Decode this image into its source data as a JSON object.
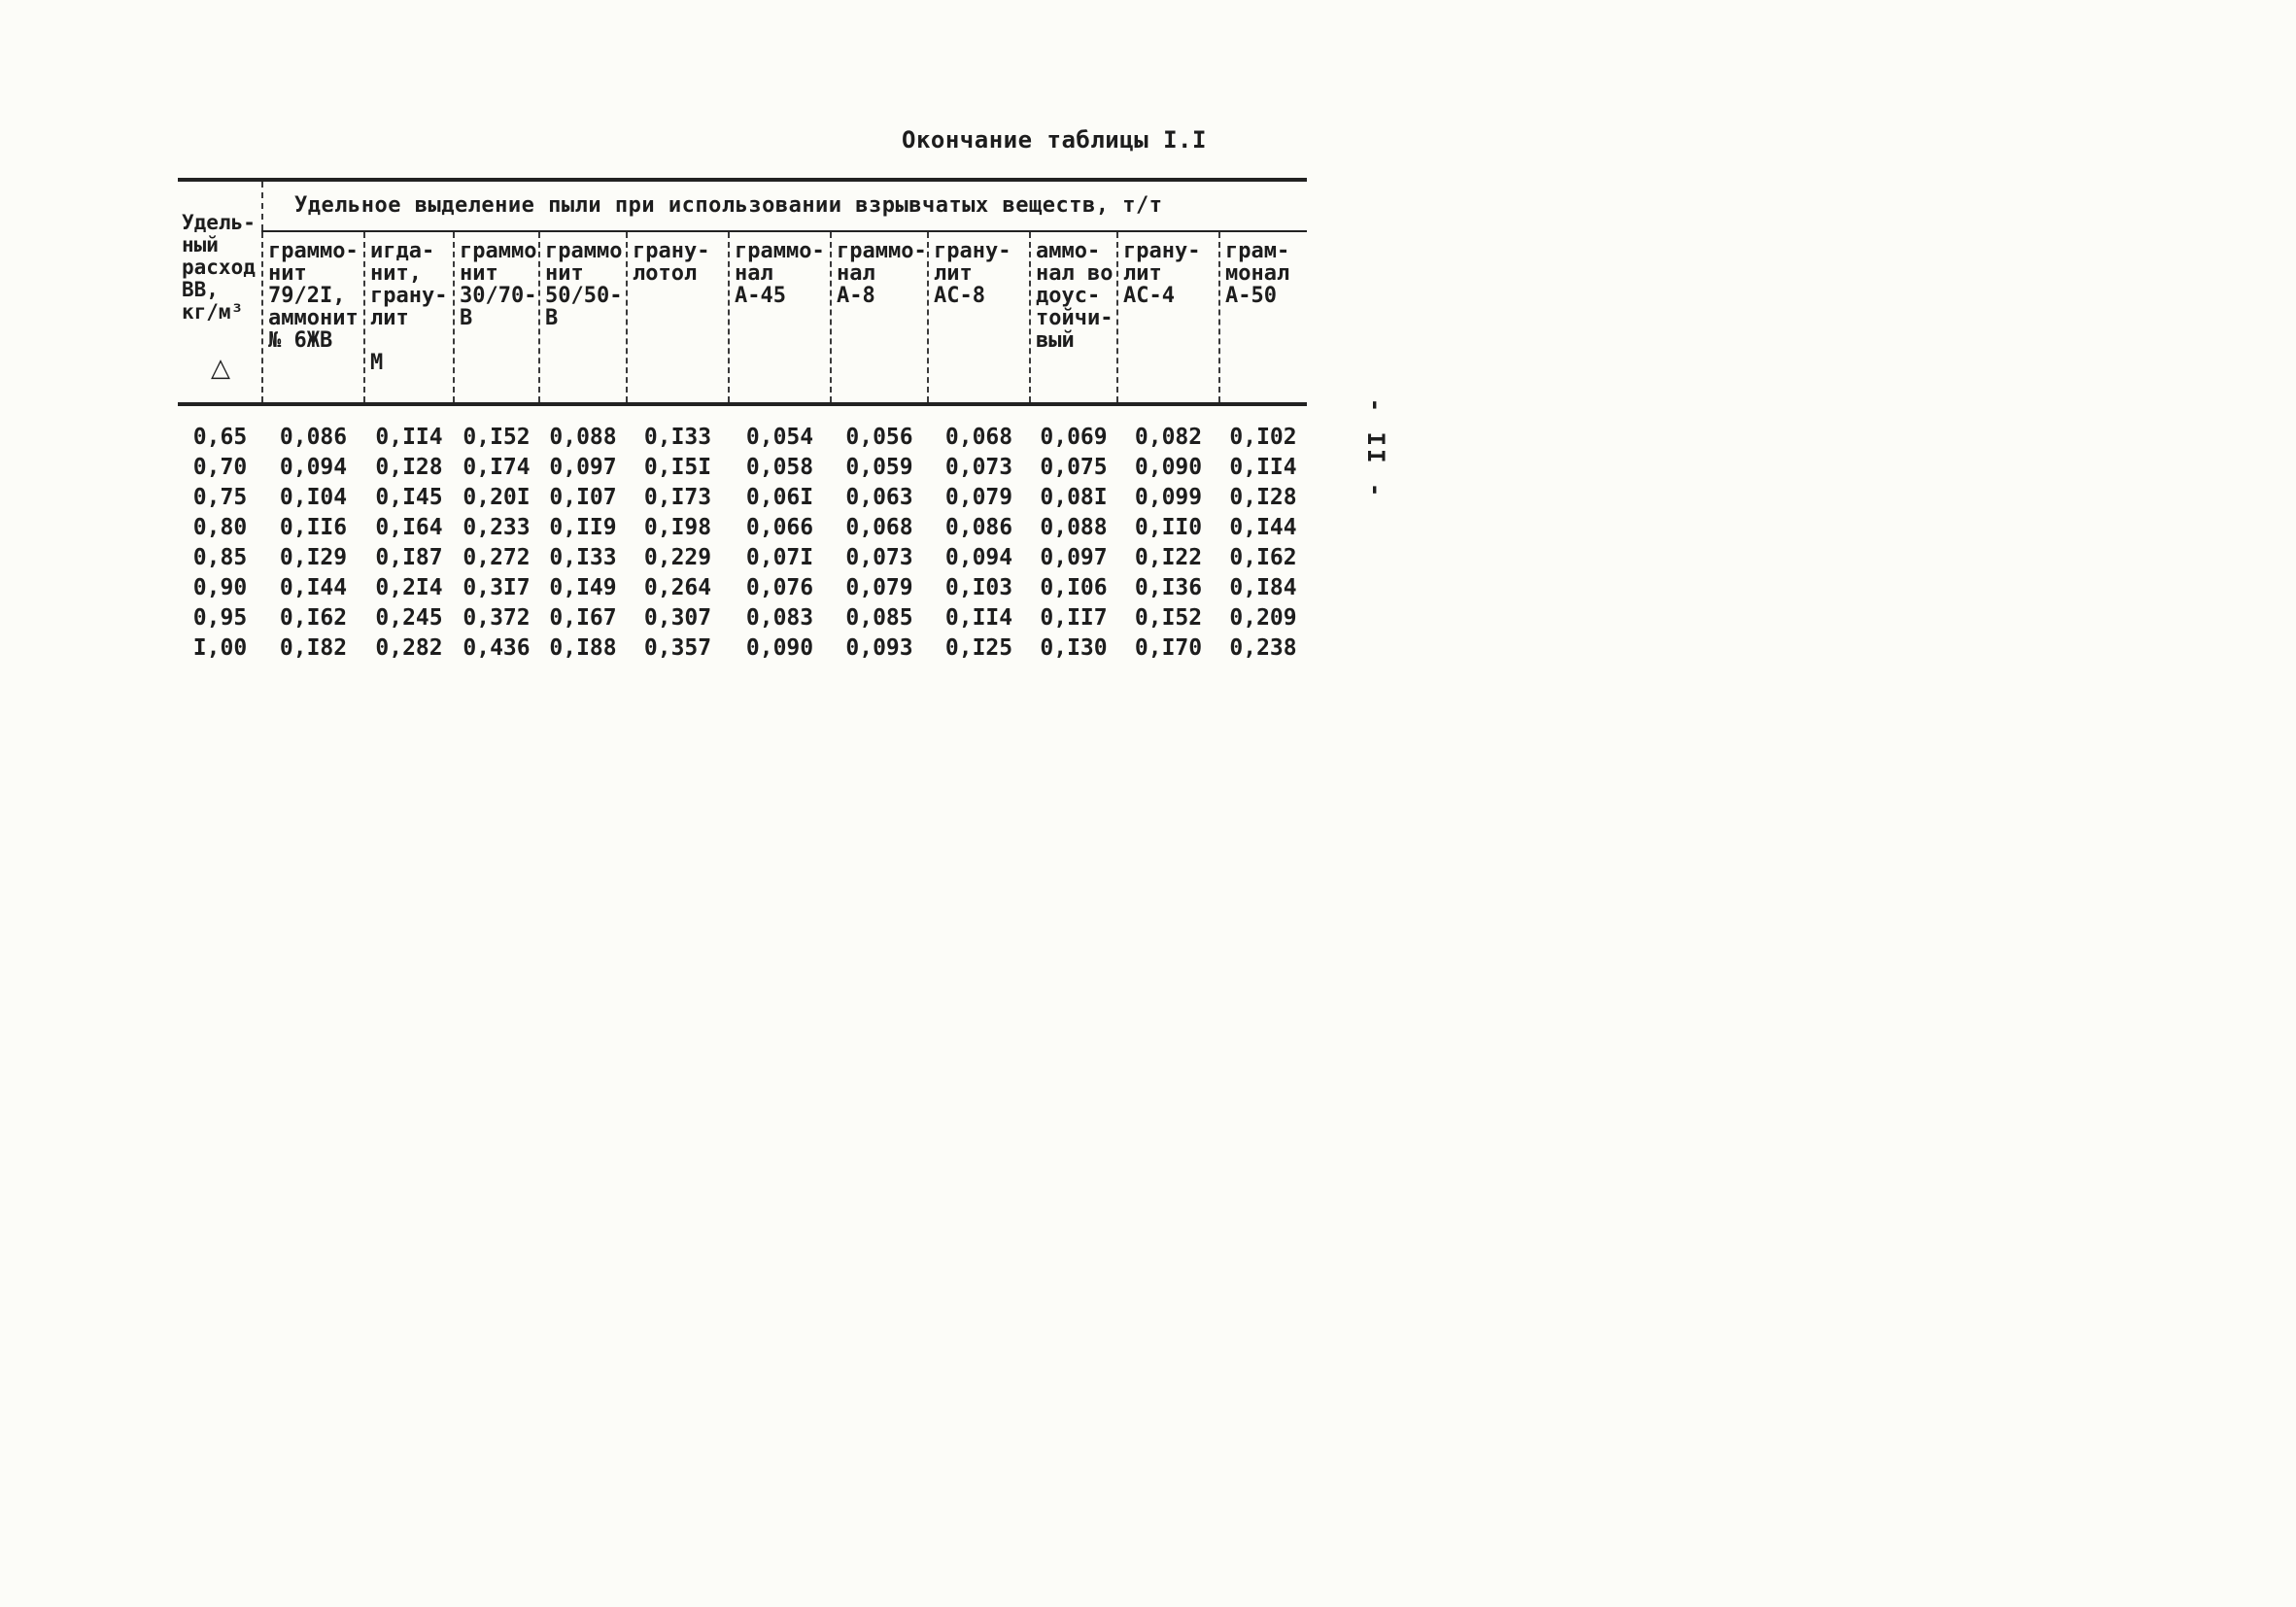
{
  "caption": "Окончание таблицы I.I",
  "page_number": "- II -",
  "table": {
    "span_header": "Удельное выделение пыли при использовании взрывчатых веществ, т/т",
    "corner_header": "Удель-\nный\nрасход\nВВ,\nкг/м³",
    "corner_symbol": "△",
    "columns": [
      "граммо-\nнит\n79/2I,\nаммонит\n№ 6ЖВ",
      "игда-\nнит,\nграну-\nлит\n      М",
      "граммо\nнит\n30/70-\nВ",
      "граммо\nнит\n50/50-\nВ",
      "грану-\nлотол",
      "граммо-\nнал\nА-45",
      "граммо-\nнал\nА-8",
      "грану-\nлит\nАС-8",
      "аммо-\nнал во\nдоус-\nтойчи-\nвый",
      "грану-\nлит\nАС-4",
      "грам-\nмонал\nА-50"
    ],
    "rows": [
      {
        "density": "0,65",
        "values": [
          "0,086",
          "0,II4",
          "0,I52",
          "0,088",
          "0,I33",
          "0,054",
          "0,056",
          "0,068",
          "0,069",
          "0,082",
          "0,I02"
        ]
      },
      {
        "density": "0,70",
        "values": [
          "0,094",
          "0,I28",
          "0,I74",
          "0,097",
          "0,I5I",
          "0,058",
          "0,059",
          "0,073",
          "0,075",
          "0,090",
          "0,II4"
        ]
      },
      {
        "density": "0,75",
        "values": [
          "0,I04",
          "0,I45",
          "0,20I",
          "0,I07",
          "0,I73",
          "0,06I",
          "0,063",
          "0,079",
          "0,08I",
          "0,099",
          "0,I28"
        ]
      },
      {
        "density": "0,80",
        "values": [
          "0,II6",
          "0,I64",
          "0,233",
          "0,II9",
          "0,I98",
          "0,066",
          "0,068",
          "0,086",
          "0,088",
          "0,II0",
          "0,I44"
        ]
      },
      {
        "density": "0,85",
        "values": [
          "0,I29",
          "0,I87",
          "0,272",
          "0,I33",
          "0,229",
          "0,07I",
          "0,073",
          "0,094",
          "0,097",
          "0,I22",
          "0,I62"
        ]
      },
      {
        "density": "0,90",
        "values": [
          "0,I44",
          "0,2I4",
          "0,3I7",
          "0,I49",
          "0,264",
          "0,076",
          "0,079",
          "0,I03",
          "0,I06",
          "0,I36",
          "0,I84"
        ]
      },
      {
        "density": "0,95",
        "values": [
          "0,I62",
          "0,245",
          "0,372",
          "0,I67",
          "0,307",
          "0,083",
          "0,085",
          "0,II4",
          "0,II7",
          "0,I52",
          "0,209"
        ]
      },
      {
        "density": "I,00",
        "values": [
          "0,I82",
          "0,282",
          "0,436",
          "0,I88",
          "0,357",
          "0,090",
          "0,093",
          "0,I25",
          "0,I30",
          "0,I70",
          "0,238"
        ]
      }
    ]
  }
}
